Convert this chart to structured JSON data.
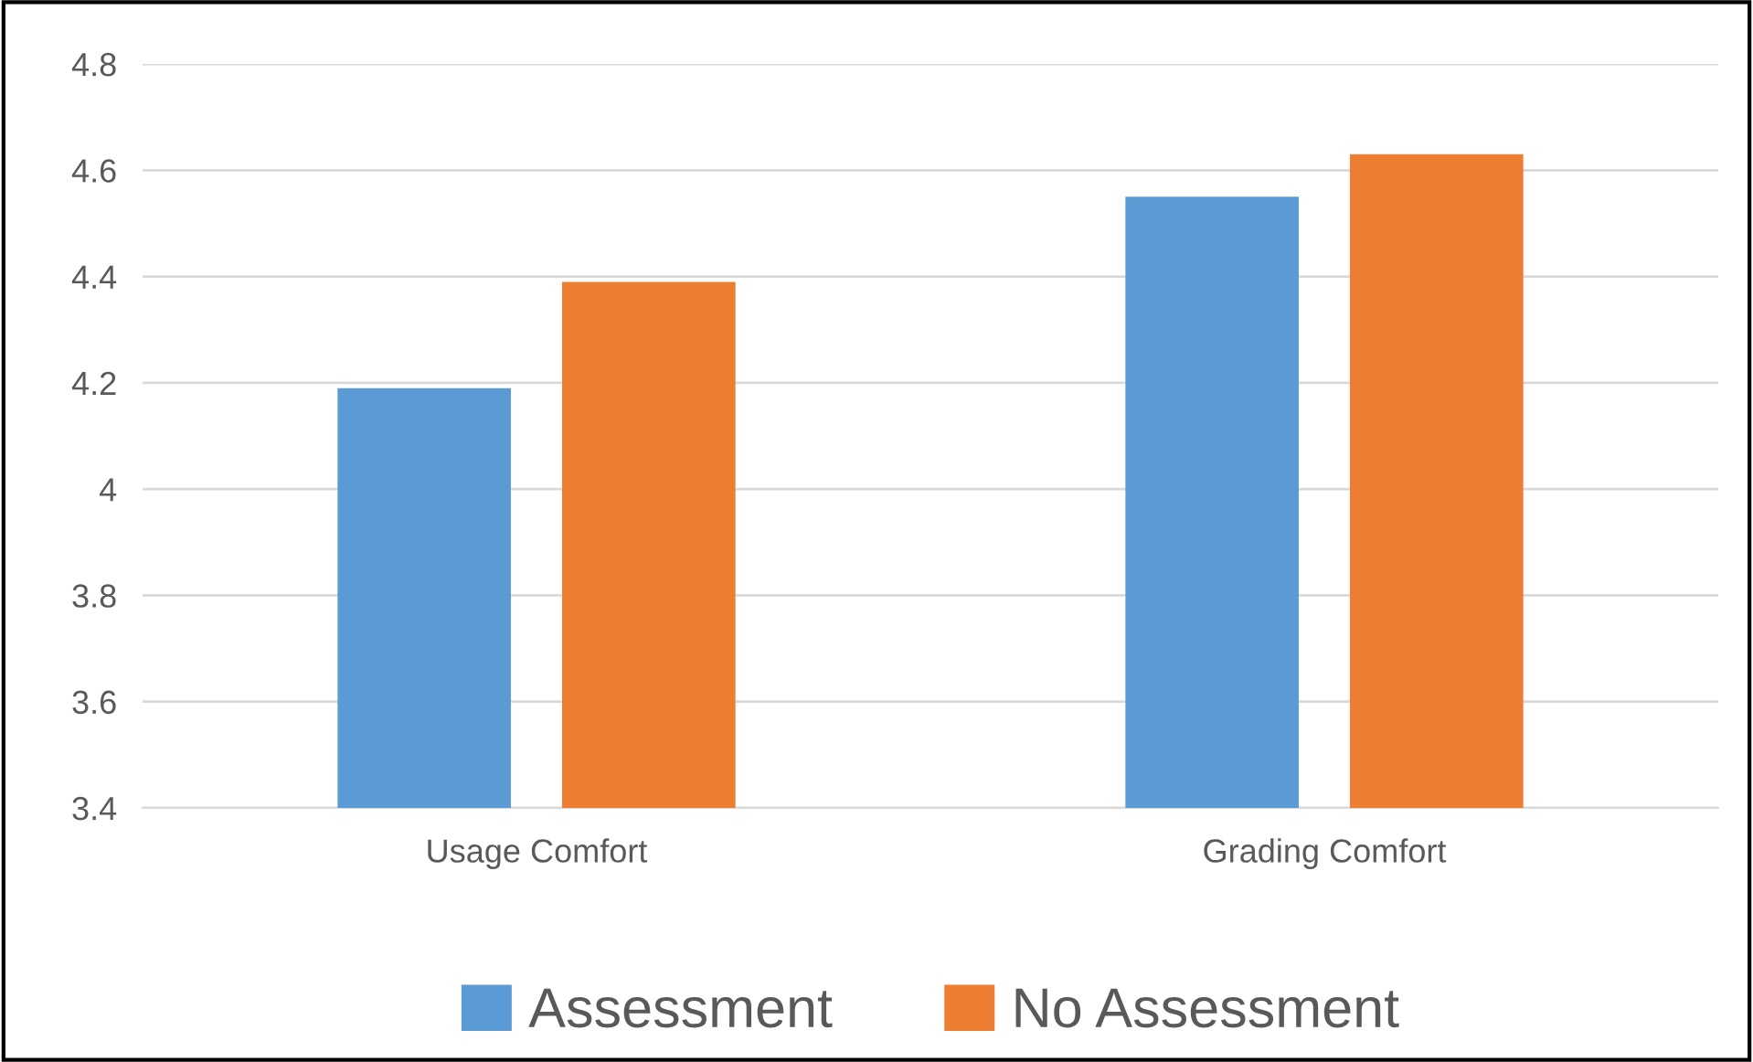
{
  "chart_data": {
    "type": "bar",
    "categories": [
      "Usage Comfort",
      "Grading Comfort"
    ],
    "series": [
      {
        "name": "Assessment",
        "color": "#5b9bd5",
        "values": [
          4.19,
          4.55
        ]
      },
      {
        "name": "No Assessment",
        "color": "#ed7d31",
        "values": [
          4.39,
          4.63
        ]
      }
    ],
    "ylim": [
      3.4,
      4.8
    ],
    "yticks": [
      3.4,
      3.6,
      3.8,
      4,
      4.2,
      4.4,
      4.6,
      4.8
    ],
    "grid": "y",
    "legend": "bottom"
  }
}
